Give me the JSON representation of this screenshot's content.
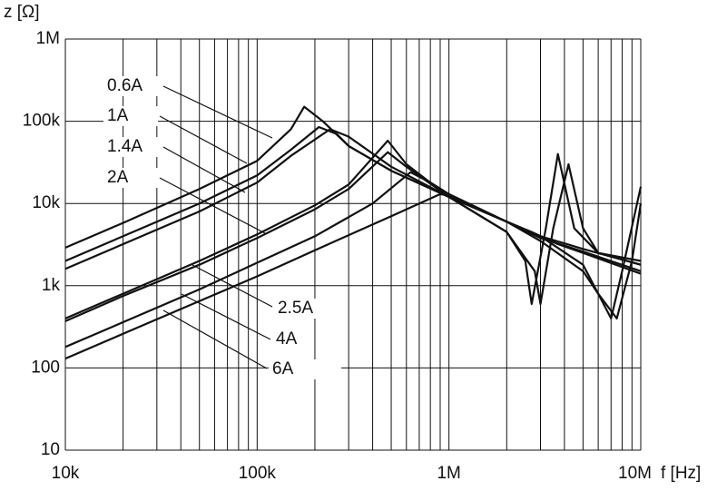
{
  "chart_data": {
    "type": "line",
    "y_label": "z [Ω]",
    "x_label": "f [Hz]",
    "log_x": true,
    "log_y": true,
    "grid": true,
    "minor_grid_x": true,
    "color": "#111111",
    "xlim": [
      10000,
      10000000
    ],
    "xticks": [
      {
        "value": 10000,
        "label": "10k"
      },
      {
        "value": 100000,
        "label": "100k"
      },
      {
        "value": 1000000,
        "label": "1M"
      },
      {
        "value": 10000000,
        "label": "10M"
      }
    ],
    "ylim": [
      10,
      1000000
    ],
    "yticks": [
      10,
      100,
      {
        "value": 1000,
        "label": "1k"
      },
      {
        "value": 10000,
        "label": "10k"
      },
      {
        "value": 100000,
        "label": "100k"
      },
      {
        "value": 1000000,
        "label": "1M"
      }
    ],
    "series": [
      {
        "name": "0.6A",
        "x": [
          10000,
          20000,
          50000,
          100000,
          150000,
          176000,
          220000,
          300000,
          500000,
          1000000,
          2000000,
          3000000,
          5000000,
          10000000
        ],
        "values": [
          2900,
          5800,
          15000,
          33000,
          80000,
          150000,
          100000,
          50000,
          25000,
          12000,
          6000,
          4000,
          2800,
          1800
        ]
      },
      {
        "name": "1A",
        "x": [
          10000,
          20000,
          50000,
          100000,
          150000,
          210000,
          260000,
          300000,
          500000,
          1000000,
          2000000,
          3000000,
          5000000,
          10000000
        ],
        "values": [
          2000,
          4000,
          10000,
          22000,
          45000,
          85000,
          70000,
          50000,
          25000,
          12000,
          6000,
          3800,
          2600,
          1500
        ]
      },
      {
        "name": "1.4A",
        "x": [
          10000,
          20000,
          50000,
          100000,
          150000,
          240000,
          300000,
          500000,
          1000000,
          2000000,
          2700000,
          3700000,
          5000000,
          10000000
        ],
        "values": [
          1600,
          3200,
          8000,
          18000,
          38000,
          80000,
          65000,
          28000,
          12000,
          6000,
          4500,
          3200,
          2500,
          1400
        ]
      },
      {
        "name": "2A",
        "x": [
          10000,
          20000,
          50000,
          100000,
          200000,
          300000,
          480000,
          600000,
          1000000,
          2000000,
          2500000,
          2700000,
          3200000,
          3700000,
          4500000,
          6000000,
          10000000
        ],
        "values": [
          400,
          800,
          2000,
          4200,
          9500,
          17000,
          58000,
          30000,
          12000,
          4500,
          2000,
          600,
          5000,
          40000,
          5000,
          2500,
          1800
        ]
      },
      {
        "name": "2.5A",
        "x": [
          10000,
          20000,
          50000,
          100000,
          200000,
          300000,
          480000,
          600000,
          1000000,
          2000000,
          2800000,
          3000000,
          3500000,
          4200000,
          5000000,
          6000000,
          10000000
        ],
        "values": [
          370,
          750,
          1800,
          3800,
          8500,
          15000,
          42000,
          28000,
          12000,
          4500,
          1500,
          600,
          5000,
          30000,
          5000,
          2500,
          2000
        ]
      },
      {
        "name": "4A",
        "x": [
          10000,
          20000,
          50000,
          100000,
          200000,
          400000,
          630000,
          800000,
          1000000,
          2000000,
          3000000,
          5000000,
          6000000,
          7000000,
          8000000,
          10000000
        ],
        "values": [
          180,
          360,
          900,
          1900,
          4000,
          10000,
          24000,
          18000,
          13000,
          6000,
          4000,
          1800,
          800,
          400,
          1500,
          16000
        ]
      },
      {
        "name": "6A",
        "x": [
          10000,
          20000,
          50000,
          100000,
          200000,
          500000,
          900000,
          1000000,
          2000000,
          3000000,
          5000000,
          6000000,
          7500000,
          9000000,
          10000000
        ],
        "values": [
          130,
          260,
          650,
          1300,
          2700,
          7000,
          13000,
          12500,
          6000,
          3500,
          1500,
          800,
          400,
          2000,
          10000
        ]
      }
    ]
  }
}
